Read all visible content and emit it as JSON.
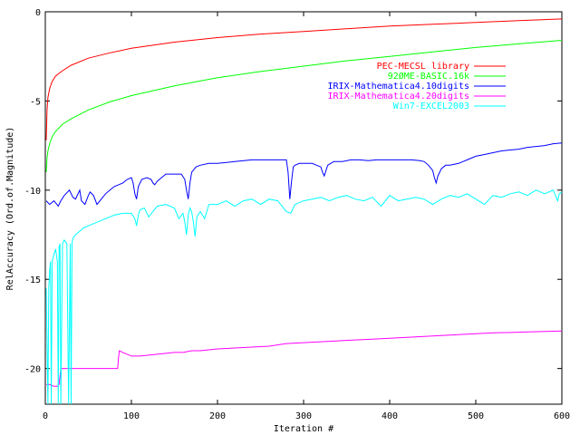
{
  "chart_data": {
    "type": "line",
    "title": "",
    "xlabel": "Iteration #",
    "ylabel": "RelAccuracy (Ord.of.Magnitude)",
    "xlim": [
      0,
      600
    ],
    "ylim": [
      -22,
      0
    ],
    "grid": false,
    "legend_position": "top-right",
    "x_ticks": [
      0,
      100,
      200,
      300,
      400,
      500,
      600
    ],
    "x_tick_labels": [
      "0",
      "100",
      "200",
      "300",
      "400",
      "500",
      "600"
    ],
    "y_ticks": [
      0,
      -5,
      -10,
      -15,
      -20
    ],
    "y_tick_labels": [
      "0",
      "-5",
      "-10",
      "-15",
      "-20"
    ],
    "series": [
      {
        "name": "PEC-MECSL library",
        "color": "#ff0000",
        "x": [
          1,
          2,
          3,
          5,
          8,
          12,
          20,
          30,
          50,
          75,
          100,
          150,
          200,
          250,
          300,
          350,
          400,
          450,
          500,
          550,
          600
        ],
        "y": [
          -7.2,
          -5.5,
          -4.8,
          -4.3,
          -3.9,
          -3.6,
          -3.3,
          -3.0,
          -2.6,
          -2.3,
          -2.05,
          -1.7,
          -1.45,
          -1.25,
          -1.1,
          -0.95,
          -0.8,
          -0.7,
          -0.6,
          -0.5,
          -0.4
        ]
      },
      {
        "name": "92ØME-BASIC.16k",
        "color": "#00ff00",
        "x": [
          1,
          2,
          3,
          5,
          8,
          12,
          20,
          30,
          50,
          75,
          100,
          150,
          200,
          250,
          300,
          350,
          400,
          450,
          500,
          550,
          600
        ],
        "y": [
          -9.0,
          -8.2,
          -7.8,
          -7.4,
          -7.0,
          -6.7,
          -6.3,
          -6.0,
          -5.5,
          -5.05,
          -4.7,
          -4.15,
          -3.7,
          -3.35,
          -3.05,
          -2.75,
          -2.5,
          -2.25,
          -2.0,
          -1.8,
          -1.6
        ]
      },
      {
        "name": "IRIX-Mathematica4.10digits",
        "color": "#0000ff",
        "x": [
          1,
          5,
          10,
          15,
          18,
          22,
          28,
          32,
          35,
          40,
          42,
          46,
          50,
          52,
          56,
          60,
          65,
          70,
          75,
          80,
          85,
          90,
          95,
          100,
          102,
          104,
          106,
          108,
          112,
          118,
          123,
          125,
          127,
          130,
          135,
          140,
          150,
          158,
          162,
          164,
          166,
          168,
          170,
          175,
          180,
          190,
          200,
          220,
          240,
          260,
          280,
          282,
          284,
          286,
          288,
          290,
          295,
          300,
          310,
          315,
          320,
          322,
          324,
          326,
          328,
          335,
          345,
          355,
          365,
          375,
          385,
          395,
          405,
          415,
          425,
          435,
          440,
          445,
          450,
          452,
          454,
          456,
          460,
          465,
          470,
          480,
          490,
          500,
          510,
          520,
          530,
          540,
          550,
          560,
          570,
          580,
          590,
          600
        ],
        "y": [
          -10.6,
          -10.8,
          -10.6,
          -10.9,
          -10.6,
          -10.3,
          -10.0,
          -10.4,
          -10.5,
          -10.0,
          -10.6,
          -10.8,
          -10.3,
          -10.1,
          -10.3,
          -10.8,
          -10.5,
          -10.2,
          -10.0,
          -9.8,
          -9.7,
          -9.6,
          -9.4,
          -9.3,
          -9.6,
          -10.2,
          -10.5,
          -9.8,
          -9.4,
          -9.3,
          -9.4,
          -9.6,
          -9.7,
          -9.5,
          -9.3,
          -9.1,
          -9.1,
          -9.1,
          -9.4,
          -10.0,
          -10.5,
          -9.6,
          -9.0,
          -8.7,
          -8.6,
          -8.5,
          -8.5,
          -8.4,
          -8.3,
          -8.3,
          -8.3,
          -9.0,
          -10.5,
          -9.5,
          -8.7,
          -8.6,
          -8.5,
          -8.5,
          -8.5,
          -8.6,
          -8.7,
          -9.0,
          -9.2,
          -8.9,
          -8.6,
          -8.4,
          -8.4,
          -8.3,
          -8.3,
          -8.35,
          -8.3,
          -8.3,
          -8.3,
          -8.3,
          -8.3,
          -8.35,
          -8.4,
          -8.6,
          -8.9,
          -9.3,
          -9.6,
          -9.2,
          -8.8,
          -8.6,
          -8.6,
          -8.5,
          -8.3,
          -8.1,
          -8.0,
          -7.9,
          -7.8,
          -7.75,
          -7.7,
          -7.6,
          -7.55,
          -7.5,
          -7.4,
          -7.35
        ]
      },
      {
        "name": "IRIX-Mathematica4.20digits",
        "color": "#ff00ff",
        "x": [
          1,
          5,
          10,
          14,
          16,
          18,
          20,
          25,
          30,
          40,
          50,
          60,
          70,
          80,
          84,
          85,
          86,
          90,
          100,
          110,
          120,
          130,
          140,
          150,
          160,
          170,
          180,
          190,
          200,
          220,
          240,
          260,
          280,
          300,
          320,
          340,
          360,
          380,
          400,
          420,
          440,
          460,
          480,
          500,
          520,
          540,
          560,
          580,
          600
        ],
        "y": [
          -20.9,
          -20.9,
          -21.0,
          -21.0,
          -20.9,
          -20.0,
          -20.0,
          -20.0,
          -20.0,
          -20.0,
          -20.0,
          -20.0,
          -20.0,
          -20.0,
          -20.0,
          -19.4,
          -19.0,
          -19.1,
          -19.3,
          -19.3,
          -19.25,
          -19.2,
          -19.15,
          -19.1,
          -19.1,
          -19.0,
          -19.0,
          -18.95,
          -18.9,
          -18.85,
          -18.8,
          -18.75,
          -18.6,
          -18.55,
          -18.5,
          -18.45,
          -18.4,
          -18.35,
          -18.3,
          -18.25,
          -18.2,
          -18.15,
          -18.1,
          -18.05,
          -18.0,
          -17.98,
          -17.95,
          -17.92,
          -17.9
        ]
      },
      {
        "name": "Win7-EXCEL2003",
        "color": "#00ffff",
        "x": [
          1,
          3,
          4,
          5,
          6,
          7,
          8,
          9,
          10,
          12,
          14,
          15,
          16,
          17,
          18,
          20,
          22,
          25,
          27,
          29,
          30,
          31,
          32,
          35,
          40,
          45,
          50,
          55,
          60,
          70,
          80,
          90,
          100,
          104,
          106,
          108,
          110,
          115,
          120,
          130,
          140,
          150,
          155,
          160,
          162,
          164,
          166,
          168,
          170,
          172,
          174,
          176,
          180,
          185,
          190,
          200,
          210,
          220,
          230,
          240,
          250,
          260,
          270,
          280,
          285,
          290,
          300,
          310,
          320,
          330,
          340,
          350,
          360,
          370,
          380,
          390,
          400,
          410,
          420,
          430,
          440,
          450,
          460,
          470,
          480,
          490,
          500,
          510,
          520,
          530,
          540,
          550,
          560,
          570,
          580,
          590,
          595,
          597,
          600
        ],
        "y": [
          -15.5,
          -22,
          -15.5,
          -14.5,
          -14.0,
          -22,
          -14.0,
          -13.8,
          -13.6,
          -13.3,
          -14.0,
          -22,
          -13.2,
          -13.0,
          -22,
          -13.0,
          -12.8,
          -13.0,
          -22,
          -13.0,
          -22,
          -13.0,
          -12.7,
          -12.5,
          -12.3,
          -12.1,
          -12.0,
          -11.9,
          -11.8,
          -11.6,
          -11.4,
          -11.3,
          -11.3,
          -11.6,
          -12.0,
          -11.4,
          -11.1,
          -11.0,
          -11.5,
          -10.9,
          -10.8,
          -11.0,
          -11.6,
          -11.3,
          -11.8,
          -12.5,
          -11.4,
          -11.0,
          -11.2,
          -11.8,
          -12.6,
          -11.5,
          -11.2,
          -11.6,
          -10.8,
          -10.8,
          -10.6,
          -10.9,
          -10.6,
          -10.5,
          -10.8,
          -10.5,
          -10.6,
          -11.2,
          -11.3,
          -10.8,
          -10.6,
          -10.5,
          -10.4,
          -10.6,
          -10.4,
          -10.3,
          -10.5,
          -10.6,
          -10.4,
          -10.9,
          -10.3,
          -10.6,
          -10.5,
          -10.4,
          -10.5,
          -10.8,
          -10.5,
          -10.3,
          -10.4,
          -10.2,
          -10.5,
          -10.8,
          -10.3,
          -10.4,
          -10.2,
          -10.1,
          -10.3,
          -10.0,
          -10.2,
          -10.0,
          -10.6,
          -10.2,
          -10.1
        ]
      }
    ]
  }
}
